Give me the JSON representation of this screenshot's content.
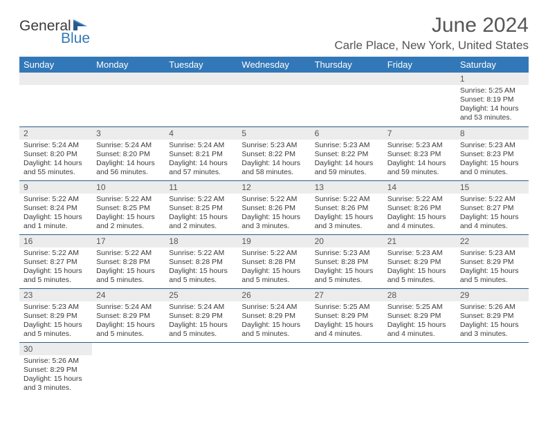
{
  "logo": {
    "text1": "General",
    "text2": "Blue"
  },
  "title": "June 2024",
  "location": "Carle Place, New York, United States",
  "day_headers": [
    "Sunday",
    "Monday",
    "Tuesday",
    "Wednesday",
    "Thursday",
    "Friday",
    "Saturday"
  ],
  "colors": {
    "header_bg": "#3278b8",
    "header_text": "#ffffff",
    "daynum_bg": "#ececec",
    "rule": "#2a5a8a",
    "body_text": "#3a3a3a"
  },
  "weeks": [
    [
      null,
      null,
      null,
      null,
      null,
      null,
      {
        "n": "1",
        "sunrise": "Sunrise: 5:25 AM",
        "sunset": "Sunset: 8:19 PM",
        "daylight": "Daylight: 14 hours and 53 minutes."
      }
    ],
    [
      {
        "n": "2",
        "sunrise": "Sunrise: 5:24 AM",
        "sunset": "Sunset: 8:20 PM",
        "daylight": "Daylight: 14 hours and 55 minutes."
      },
      {
        "n": "3",
        "sunrise": "Sunrise: 5:24 AM",
        "sunset": "Sunset: 8:20 PM",
        "daylight": "Daylight: 14 hours and 56 minutes."
      },
      {
        "n": "4",
        "sunrise": "Sunrise: 5:24 AM",
        "sunset": "Sunset: 8:21 PM",
        "daylight": "Daylight: 14 hours and 57 minutes."
      },
      {
        "n": "5",
        "sunrise": "Sunrise: 5:23 AM",
        "sunset": "Sunset: 8:22 PM",
        "daylight": "Daylight: 14 hours and 58 minutes."
      },
      {
        "n": "6",
        "sunrise": "Sunrise: 5:23 AM",
        "sunset": "Sunset: 8:22 PM",
        "daylight": "Daylight: 14 hours and 59 minutes."
      },
      {
        "n": "7",
        "sunrise": "Sunrise: 5:23 AM",
        "sunset": "Sunset: 8:23 PM",
        "daylight": "Daylight: 14 hours and 59 minutes."
      },
      {
        "n": "8",
        "sunrise": "Sunrise: 5:23 AM",
        "sunset": "Sunset: 8:23 PM",
        "daylight": "Daylight: 15 hours and 0 minutes."
      }
    ],
    [
      {
        "n": "9",
        "sunrise": "Sunrise: 5:22 AM",
        "sunset": "Sunset: 8:24 PM",
        "daylight": "Daylight: 15 hours and 1 minute."
      },
      {
        "n": "10",
        "sunrise": "Sunrise: 5:22 AM",
        "sunset": "Sunset: 8:25 PM",
        "daylight": "Daylight: 15 hours and 2 minutes."
      },
      {
        "n": "11",
        "sunrise": "Sunrise: 5:22 AM",
        "sunset": "Sunset: 8:25 PM",
        "daylight": "Daylight: 15 hours and 2 minutes."
      },
      {
        "n": "12",
        "sunrise": "Sunrise: 5:22 AM",
        "sunset": "Sunset: 8:26 PM",
        "daylight": "Daylight: 15 hours and 3 minutes."
      },
      {
        "n": "13",
        "sunrise": "Sunrise: 5:22 AM",
        "sunset": "Sunset: 8:26 PM",
        "daylight": "Daylight: 15 hours and 3 minutes."
      },
      {
        "n": "14",
        "sunrise": "Sunrise: 5:22 AM",
        "sunset": "Sunset: 8:26 PM",
        "daylight": "Daylight: 15 hours and 4 minutes."
      },
      {
        "n": "15",
        "sunrise": "Sunrise: 5:22 AM",
        "sunset": "Sunset: 8:27 PM",
        "daylight": "Daylight: 15 hours and 4 minutes."
      }
    ],
    [
      {
        "n": "16",
        "sunrise": "Sunrise: 5:22 AM",
        "sunset": "Sunset: 8:27 PM",
        "daylight": "Daylight: 15 hours and 5 minutes."
      },
      {
        "n": "17",
        "sunrise": "Sunrise: 5:22 AM",
        "sunset": "Sunset: 8:28 PM",
        "daylight": "Daylight: 15 hours and 5 minutes."
      },
      {
        "n": "18",
        "sunrise": "Sunrise: 5:22 AM",
        "sunset": "Sunset: 8:28 PM",
        "daylight": "Daylight: 15 hours and 5 minutes."
      },
      {
        "n": "19",
        "sunrise": "Sunrise: 5:22 AM",
        "sunset": "Sunset: 8:28 PM",
        "daylight": "Daylight: 15 hours and 5 minutes."
      },
      {
        "n": "20",
        "sunrise": "Sunrise: 5:23 AM",
        "sunset": "Sunset: 8:28 PM",
        "daylight": "Daylight: 15 hours and 5 minutes."
      },
      {
        "n": "21",
        "sunrise": "Sunrise: 5:23 AM",
        "sunset": "Sunset: 8:29 PM",
        "daylight": "Daylight: 15 hours and 5 minutes."
      },
      {
        "n": "22",
        "sunrise": "Sunrise: 5:23 AM",
        "sunset": "Sunset: 8:29 PM",
        "daylight": "Daylight: 15 hours and 5 minutes."
      }
    ],
    [
      {
        "n": "23",
        "sunrise": "Sunrise: 5:23 AM",
        "sunset": "Sunset: 8:29 PM",
        "daylight": "Daylight: 15 hours and 5 minutes."
      },
      {
        "n": "24",
        "sunrise": "Sunrise: 5:24 AM",
        "sunset": "Sunset: 8:29 PM",
        "daylight": "Daylight: 15 hours and 5 minutes."
      },
      {
        "n": "25",
        "sunrise": "Sunrise: 5:24 AM",
        "sunset": "Sunset: 8:29 PM",
        "daylight": "Daylight: 15 hours and 5 minutes."
      },
      {
        "n": "26",
        "sunrise": "Sunrise: 5:24 AM",
        "sunset": "Sunset: 8:29 PM",
        "daylight": "Daylight: 15 hours and 5 minutes."
      },
      {
        "n": "27",
        "sunrise": "Sunrise: 5:25 AM",
        "sunset": "Sunset: 8:29 PM",
        "daylight": "Daylight: 15 hours and 4 minutes."
      },
      {
        "n": "28",
        "sunrise": "Sunrise: 5:25 AM",
        "sunset": "Sunset: 8:29 PM",
        "daylight": "Daylight: 15 hours and 4 minutes."
      },
      {
        "n": "29",
        "sunrise": "Sunrise: 5:26 AM",
        "sunset": "Sunset: 8:29 PM",
        "daylight": "Daylight: 15 hours and 3 minutes."
      }
    ],
    [
      {
        "n": "30",
        "sunrise": "Sunrise: 5:26 AM",
        "sunset": "Sunset: 8:29 PM",
        "daylight": "Daylight: 15 hours and 3 minutes."
      },
      null,
      null,
      null,
      null,
      null,
      null
    ]
  ]
}
